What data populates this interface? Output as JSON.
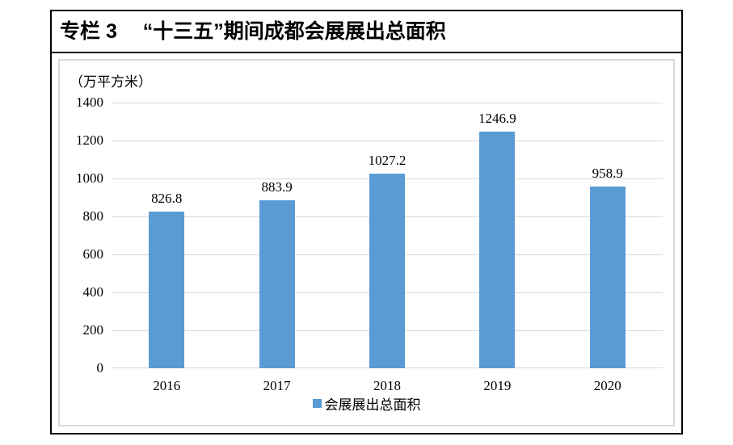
{
  "panel": {
    "title": "专栏 3　 “十三五”期间成都会展展出总面积"
  },
  "chart_data": {
    "type": "bar",
    "title": "专栏 3　“十三五”期间成都会展展出总面积",
    "unit_label": "（万平方米）",
    "categories": [
      "2016",
      "2017",
      "2018",
      "2019",
      "2020"
    ],
    "series": [
      {
        "name": "会展展出总面积",
        "values": [
          826.8,
          883.9,
          1027.2,
          1246.9,
          958.9
        ]
      }
    ],
    "xlabel": "",
    "ylabel": "",
    "ylim": [
      0,
      1400
    ],
    "yticks": [
      0,
      200,
      400,
      600,
      800,
      1000,
      1200,
      1400
    ],
    "grid": true,
    "legend_position": "bottom",
    "colors": {
      "bar": "#5B9BD5",
      "gridline": "#D9D9D9",
      "text": "#000000",
      "frame_border": "#D9D9D9",
      "panel_border": "#000000"
    }
  }
}
